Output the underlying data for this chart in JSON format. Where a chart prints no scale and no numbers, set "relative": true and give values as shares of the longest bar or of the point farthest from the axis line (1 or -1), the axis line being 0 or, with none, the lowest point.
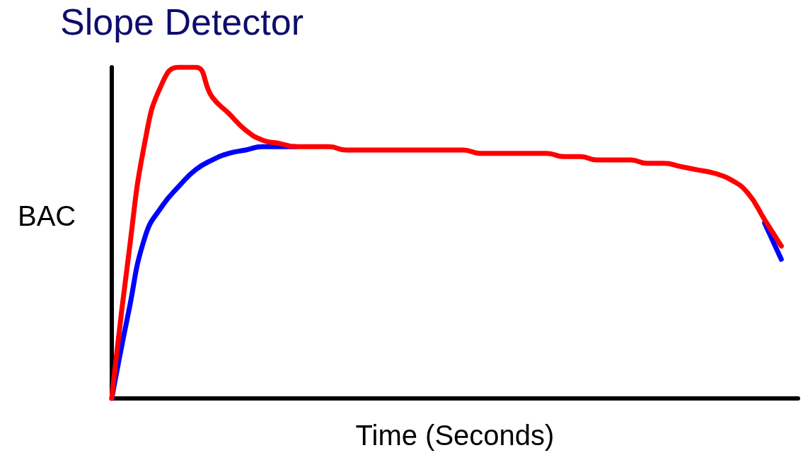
{
  "chart_data": {
    "type": "line",
    "title": "Slope Detector",
    "xlabel": "Time (Seconds)",
    "ylabel": "BAC",
    "relative": true,
    "grid": false,
    "marker": "none",
    "line_style": "solid",
    "categories": [
      null,
      null,
      null,
      null,
      null,
      null,
      null,
      null,
      null,
      null,
      null,
      null,
      null,
      null,
      null,
      null,
      null,
      null,
      null,
      null,
      null,
      null,
      null,
      null,
      null,
      null,
      null,
      null,
      null,
      null,
      null,
      null,
      null,
      null,
      null,
      null,
      null,
      null,
      null,
      null,
      null,
      null
    ],
    "series": [
      {
        "color": "#0000ff",
        "values": [
          0,
          0.26,
          0.49,
          0.58,
          0.64,
          0.69,
          0.72,
          0.74,
          0.75,
          0.76,
          0.76,
          0.76,
          null,
          null,
          null,
          null,
          null,
          null,
          null,
          null,
          null,
          null,
          null,
          null,
          null,
          null,
          null,
          null,
          null,
          null,
          null,
          null,
          null,
          null,
          null,
          null,
          null,
          null,
          null,
          0.53,
          0.42,
          null
        ]
      },
      {
        "color": "#ff0000",
        "values": [
          0,
          0.43,
          0.78,
          0.95,
          1,
          1,
          0.91,
          0.86,
          0.81,
          0.78,
          0.77,
          0.76,
          0.76,
          0.76,
          0.75,
          0.75,
          0.75,
          0.75,
          0.75,
          0.75,
          0.75,
          0.75,
          0.74,
          0.74,
          0.74,
          0.74,
          0.74,
          0.73,
          0.73,
          0.72,
          0.72,
          0.72,
          0.71,
          0.71,
          0.7,
          0.69,
          0.68,
          0.66,
          0.62,
          0.54,
          0.46,
          null
        ]
      }
    ]
  }
}
